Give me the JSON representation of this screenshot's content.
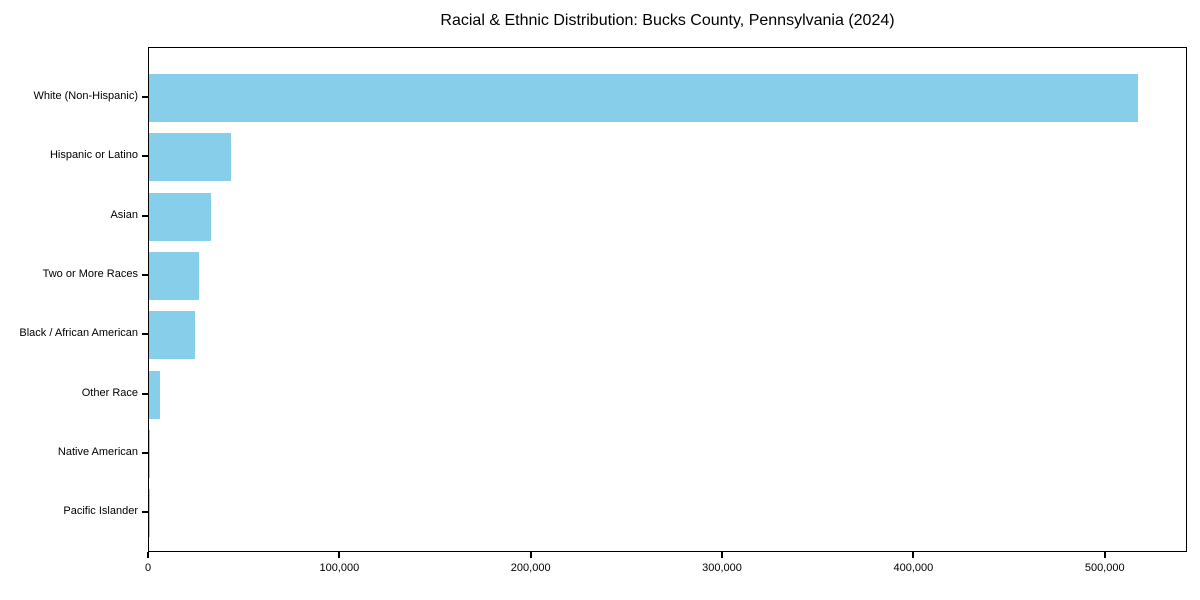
{
  "chart_data": {
    "type": "bar",
    "orientation": "horizontal",
    "title": "Racial & Ethnic Distribution: Bucks County, Pennsylvania (2024)",
    "categories": [
      "White (Non-Hispanic)",
      "Hispanic or Latino",
      "Asian",
      "Two or More Races",
      "Black / African American",
      "Other Race",
      "Native American",
      "Pacific Islander"
    ],
    "values": [
      517000,
      43000,
      32500,
      26000,
      24000,
      5500,
      400,
      150
    ],
    "xlim": [
      0,
      543000
    ],
    "xticks": [
      0,
      100000,
      200000,
      300000,
      400000,
      500000
    ],
    "xtick_labels": [
      "0",
      "100,000",
      "200,000",
      "300,000",
      "400,000",
      "500,000"
    ],
    "xlabel": "",
    "ylabel": "",
    "grid": false,
    "legend": null,
    "bar_color": "#87CEEB",
    "axis_color": "#000000",
    "background_color": "#FFFFFF"
  }
}
